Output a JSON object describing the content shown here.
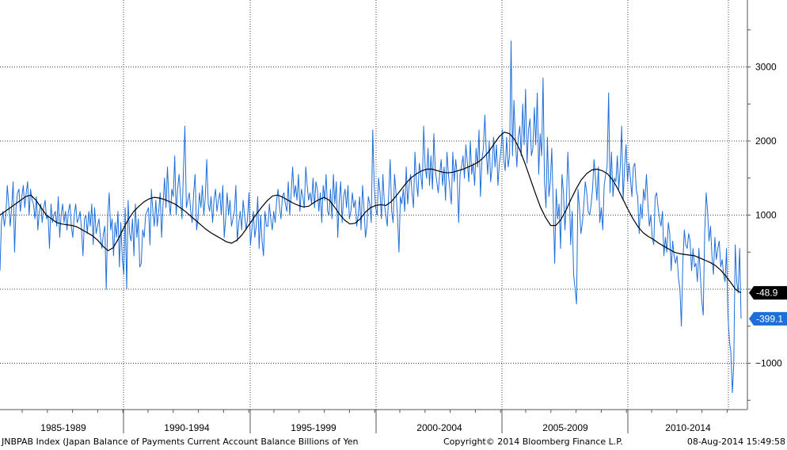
{
  "chart_data": {
    "type": "line",
    "ylim": [
      -1600,
      3800
    ],
    "yticks": [
      -1000,
      1000,
      2000,
      3000
    ],
    "grid": true,
    "x_period_labels": [
      "1985-1989",
      "1990-1994",
      "1995-1999",
      "2000-2004",
      "2005-2009",
      "2010-2014"
    ],
    "x_start": 1985.0,
    "x_end": 2014.5,
    "series": [
      {
        "key": "monthly",
        "color": "#1e6fd9",
        "last_value_label": "-399.1",
        "values": [
          250,
          900,
          1050,
          850,
          1000,
          1400,
          1150,
          850,
          1100,
          1450,
          500,
          1100,
          1300,
          1350,
          1050,
          1250,
          1400,
          1100,
          1300,
          1450,
          1000,
          1350,
          1200,
          1150,
          950,
          1250,
          800,
          1050,
          1150,
          900,
          1100,
          1200,
          950,
          1000,
          550,
          1150,
          900,
          1000,
          1050,
          850,
          1250,
          700,
          1000,
          1150,
          900,
          1050,
          800,
          1050,
          1150,
          850,
          700,
          1000,
          1150,
          900,
          950,
          1050,
          800,
          450,
          950,
          1000,
          750,
          1050,
          850,
          1150,
          600,
          1100,
          750,
          850,
          950,
          700,
          550,
          750,
          850,
          0,
          1000,
          1300,
          800,
          950,
          450,
          900,
          700,
          1050,
          300,
          900,
          400,
          200,
          1100,
          0,
          1200,
          750,
          650,
          950,
          450,
          1150,
          700,
          950,
          300,
          350,
          800,
          700,
          1000,
          1050,
          1100,
          600,
          1350,
          1050,
          850,
          1200,
          850,
          1050,
          1300,
          700,
          1150,
          1500,
          1100,
          1650,
          1200,
          1000,
          1350,
          1250,
          1800,
          1000,
          1350,
          1550,
          1250,
          950,
          1600,
          2200,
          1100,
          1200,
          1300,
          1050,
          900,
          1300,
          1550,
          800,
          950,
          1300,
          1100,
          1400,
          1000,
          1250,
          1750,
          1150,
          1050,
          1250,
          900,
          1200,
          1350,
          1050,
          1200,
          1300,
          1000,
          1400,
          700,
          950,
          1300,
          1000,
          1200,
          850,
          950,
          1050,
          1400,
          650,
          900,
          1050,
          800,
          1200,
          1000,
          800,
          950,
          1300,
          600,
          800,
          1050,
          700,
          850,
          1250,
          550,
          1000,
          650,
          450,
          1050,
          850,
          850,
          1150,
          950,
          800,
          1050,
          900,
          1200,
          1350,
          1100,
          950,
          1250,
          1300,
          1150,
          1050,
          1450,
          1000,
          1300,
          1650,
          1250,
          1400,
          1200,
          1550,
          1050,
          1350,
          1250,
          1100,
          1650,
          1400,
          1200,
          1300,
          1150,
          1500,
          1100,
          1450,
          1350,
          1050,
          1300,
          900,
          1400,
          1200,
          1550,
          1050,
          1000,
          1350,
          950,
          1550,
          1150,
          1450,
          700,
          1200,
          1450,
          900,
          1250,
          1350,
          1100,
          1400,
          950,
          1050,
          1300,
          1100,
          1200,
          850,
          1000,
          1250,
          800,
          1400,
          1100,
          700,
          850,
          1250,
          1150,
          900,
          2150,
          1400,
          1100,
          1000,
          1500,
          1300,
          950,
          1550,
          1150,
          1000,
          850,
          1300,
          1750,
          1050,
          900,
          1550,
          1300,
          1000,
          500,
          1250,
          1150,
          1350,
          1050,
          1650,
          1150,
          1400,
          1550,
          1300,
          1100,
          1850,
          1450,
          1250,
          1700,
          1550,
          1350,
          2200,
          1650,
          1500,
          1900,
          1400,
          1800,
          1350,
          2100,
          1600,
          1450,
          1300,
          1550,
          1750,
          1400,
          1650,
          1200,
          1850,
          1550,
          1350,
          1150,
          1850,
          1450,
          1750,
          1550,
          900,
          1550,
          1650,
          1800,
          1500,
          1950,
          1700,
          1450,
          2000,
          1550,
          1700,
          1400,
          1900,
          1650,
          2150,
          1250,
          1750,
          1900,
          2350,
          1850,
          1550,
          2000,
          1450,
          1650,
          2050,
          1650,
          1950,
          1400,
          1700,
          1850,
          2150,
          1750,
          1600,
          2050,
          1650,
          1800,
          3350,
          1800,
          2550,
          2000,
          1650,
          2050,
          2200,
          1800,
          2500,
          1950,
          2700,
          1700,
          2150,
          2300,
          1800,
          1900,
          2450,
          1950,
          2650,
          1550,
          2100,
          1800,
          2850,
          1450,
          1100,
          2050,
          1250,
          1450,
          1900,
          1100,
          350,
          1350,
          950,
          1150,
          550,
          1550,
          1300,
          800,
          1150,
          1850,
          1350,
          600,
          1050,
          200,
          0,
          -200,
          1350,
          1100,
          750,
          900,
          1150,
          1450,
          1300,
          1050,
          1000,
          1150,
          1350,
          1750,
          1500,
          1200,
          1650,
          900,
          1100,
          800,
          1400,
          1550,
          1650,
          2650,
          1300,
          1850,
          1250,
          1500,
          1450,
          1800,
          1350,
          1650,
          2200,
          1200,
          1650,
          1950,
          1450,
          1700,
          1500,
          1250,
          1650,
          1700,
          1350,
          1250,
          750,
          1150,
          950,
          1350,
          1200,
          1550,
          1150,
          850,
          1000,
          700,
          600,
          1250,
          1300,
          1100,
          950,
          850,
          1050,
          450,
          700,
          500,
          900,
          750,
          250,
          650,
          450,
          350,
          450,
          150,
          0,
          -500,
          350,
          800,
          600,
          550,
          750,
          650,
          250,
          550,
          300,
          350,
          100,
          550,
          200,
          -150,
          -350,
          750,
          1300,
          1050,
          650,
          850,
          450,
          200,
          700,
          400,
          550,
          650,
          300,
          400,
          200,
          100,
          550,
          -350,
          -700,
          -850,
          -1400,
          -1000,
          600,
          100,
          -50,
          550,
          -399.1
        ]
      },
      {
        "key": "moving_average",
        "color": "#000000",
        "last_value_label": "-48.9",
        "values": [
          1000,
          1050,
          1100,
          1150,
          1200,
          1250,
          1270,
          1200,
          1100,
          1000,
          950,
          900,
          880,
          870,
          860,
          840,
          800,
          760,
          720,
          660,
          580,
          520,
          560,
          680,
          820,
          950,
          1050,
          1120,
          1180,
          1220,
          1240,
          1230,
          1210,
          1180,
          1150,
          1100,
          1050,
          990,
          930,
          870,
          810,
          760,
          720,
          680,
          640,
          620,
          660,
          730,
          830,
          930,
          1030,
          1120,
          1200,
          1260,
          1270,
          1240,
          1200,
          1160,
          1130,
          1110,
          1120,
          1170,
          1210,
          1240,
          1200,
          1110,
          1010,
          930,
          880,
          890,
          950,
          1040,
          1100,
          1130,
          1140,
          1130,
          1180,
          1260,
          1350,
          1440,
          1510,
          1560,
          1600,
          1620,
          1620,
          1600,
          1580,
          1570,
          1580,
          1600,
          1620,
          1650,
          1680,
          1720,
          1780,
          1860,
          1960,
          2060,
          2120,
          2100,
          2020,
          1880,
          1700,
          1500,
          1300,
          1110,
          970,
          860,
          860,
          940,
          1070,
          1220,
          1360,
          1480,
          1560,
          1610,
          1620,
          1600,
          1560,
          1480,
          1360,
          1220,
          1080,
          950,
          840,
          760,
          710,
          670,
          620,
          580,
          540,
          500,
          480,
          470,
          460,
          450,
          420,
          390,
          360,
          320,
          260,
          180,
          90,
          -10,
          -48.9
        ]
      }
    ]
  },
  "footer": {
    "left": "JNBPAB Index (Japan Balance of Payments Current Account Balance Billions of Yen",
    "center": "Copyright© 2014 Bloomberg Finance L.P.",
    "right": "08-Aug-2014 15:49:58"
  },
  "colors": {
    "grid": "#444444",
    "axis": "#555555",
    "monthly_tag": "#1e6fd9",
    "ma_tag": "#000000"
  }
}
